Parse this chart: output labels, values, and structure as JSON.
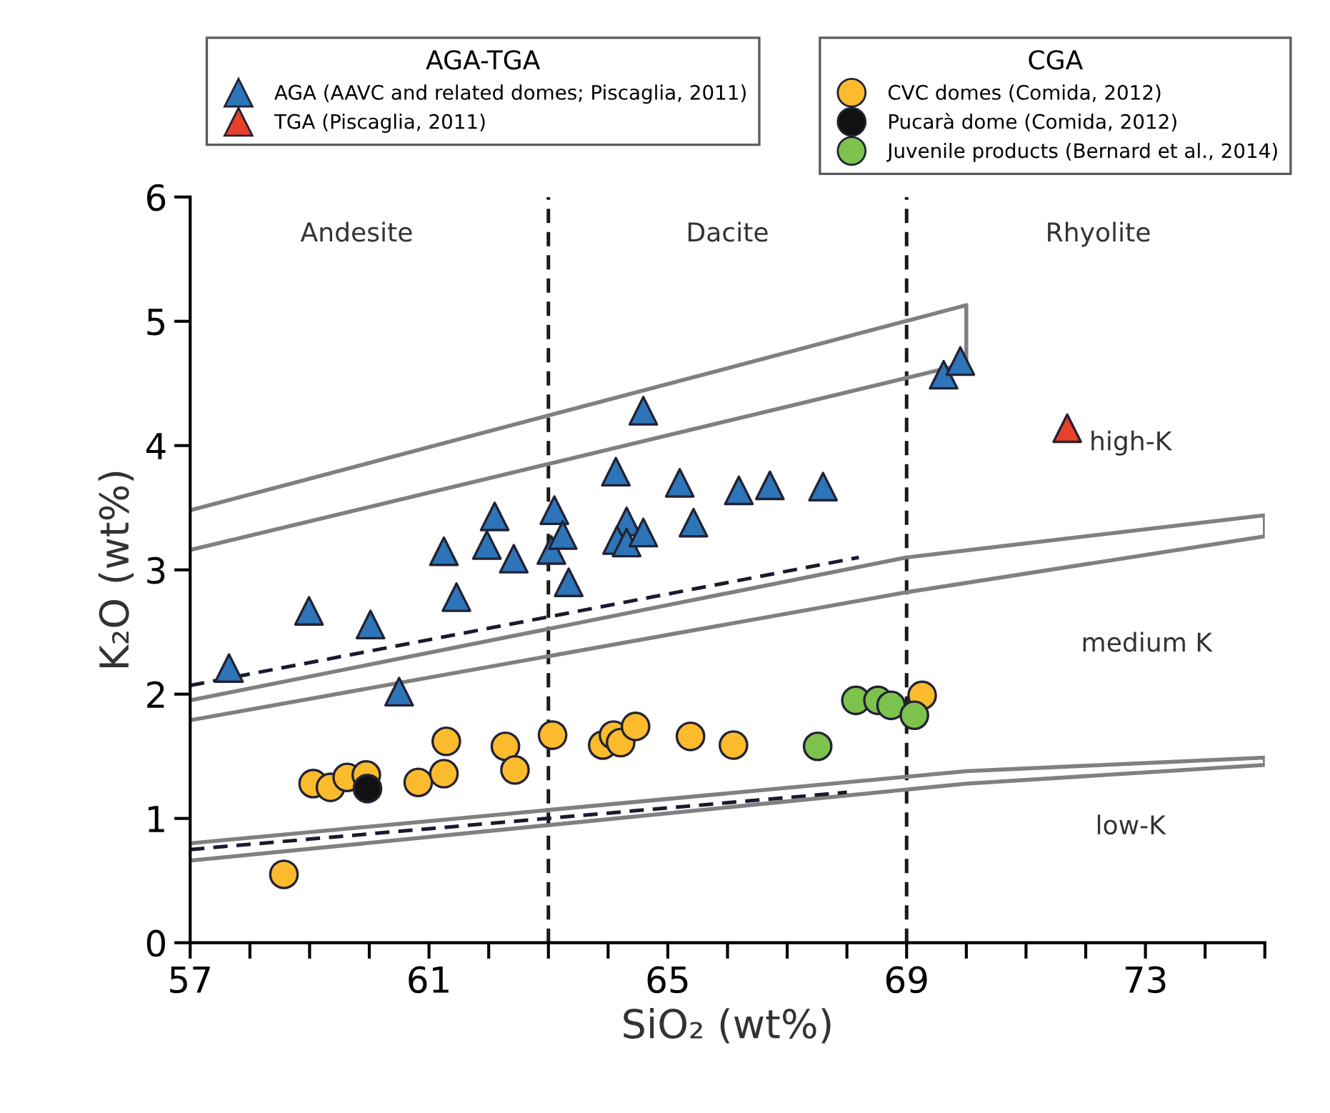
{
  "chart_data": {
    "type": "scatter",
    "xlabel": "SiO₂ (wt%)",
    "ylabel": "K₂O (wt%)",
    "legend_title": [
      "AGA-TGA",
      "CGA"
    ],
    "xlim": [
      57,
      75
    ],
    "ylim": [
      0,
      6
    ],
    "xticks": [
      57,
      {
        "value": 58,
        "label": null
      },
      {
        "value": 59,
        "label": null
      },
      {
        "value": 60,
        "label": null
      },
      61,
      {
        "value": 62,
        "label": null
      },
      {
        "value": 63,
        "label": null
      },
      {
        "value": 64,
        "label": null
      },
      65,
      {
        "value": 66,
        "label": null
      },
      {
        "value": 67,
        "label": null
      },
      {
        "value": 68,
        "label": null
      },
      69,
      {
        "value": 70,
        "label": null
      },
      {
        "value": 71,
        "label": null
      },
      {
        "value": 72,
        "label": null
      },
      73,
      {
        "value": 74,
        "label": null
      },
      {
        "value": 75,
        "label": null
      }
    ],
    "yticks": [
      0,
      1,
      2,
      3,
      4,
      5,
      6
    ],
    "grid": false,
    "legend": "top",
    "ref_lines": [
      {
        "axis": "x",
        "value": 63,
        "color": "#1a1a1a",
        "line_style": "dashed"
      },
      {
        "axis": "x",
        "value": 69,
        "color": "#1a1a1a",
        "line_style": "dashed"
      }
    ],
    "annotations": [
      "Andesite",
      "Dacite",
      "Rhyolite",
      "high-K",
      "medium K",
      "low-K"
    ],
    "series": [
      {
        "type": "line",
        "color": "#808080",
        "line_style": "solid",
        "x": [
          57,
          70,
          70,
          57
        ],
        "values": [
          3.48,
          5.13,
          4.66,
          3.16
        ]
      },
      {
        "type": "line",
        "color": "#808080",
        "line_style": "solid",
        "x": [
          57,
          69,
          75,
          75,
          69,
          57
        ],
        "values": [
          1.95,
          3.1,
          3.44,
          3.27,
          2.82,
          1.79
        ]
      },
      {
        "type": "line",
        "color": "#808080",
        "line_style": "solid",
        "x": [
          57,
          70,
          75,
          75,
          70,
          57
        ],
        "values": [
          0.8,
          1.38,
          1.49,
          1.43,
          1.28,
          0.66
        ]
      },
      {
        "type": "line",
        "color": "#1a1a2e",
        "line_style": "dashed",
        "x": [
          57,
          68.2
        ],
        "values": [
          2.07,
          3.1
        ]
      },
      {
        "type": "line",
        "color": "#1a1a2e",
        "line_style": "dashed",
        "x": [
          57,
          68
        ],
        "values": [
          0.75,
          1.21
        ]
      },
      {
        "name": "AGA (AAVC and related domes; Piscaglia, 2011)",
        "color": "#2e74b8",
        "marker": "triangle",
        "x": [
          57.65,
          58.99,
          60.02,
          60.5,
          61.46,
          61.25,
          62.1,
          61.97,
          62.42,
          63.1,
          63.05,
          63.24,
          63.34,
          64.59,
          64.13,
          64.31,
          64.15,
          64.31,
          64.59,
          65.2,
          65.43,
          66.19,
          66.71,
          67.6,
          69.62,
          69.9
        ],
        "values": [
          2.21,
          2.67,
          2.56,
          2.02,
          2.78,
          3.15,
          3.43,
          3.2,
          3.09,
          3.48,
          3.16,
          3.28,
          2.9,
          4.28,
          3.79,
          3.39,
          3.24,
          3.22,
          3.3,
          3.7,
          3.38,
          3.64,
          3.68,
          3.67,
          4.57,
          4.68
        ]
      },
      {
        "name": "TGA (Piscaglia, 2011)",
        "color": "#e8402a",
        "marker": "triangle",
        "x": [
          71.69
        ],
        "values": [
          4.14
        ]
      },
      {
        "name": "CVC domes (Comida, 2012)",
        "color": "#fbbb2c",
        "marker": "circle",
        "x": [
          58.57,
          59.06,
          59.35,
          59.63,
          59.95,
          60.82,
          61.25,
          61.29,
          62.28,
          62.44,
          63.07,
          63.91,
          64.09,
          64.21,
          64.46,
          65.38,
          66.1,
          69.26
        ],
        "values": [
          0.55,
          1.28,
          1.25,
          1.33,
          1.35,
          1.29,
          1.36,
          1.62,
          1.58,
          1.39,
          1.67,
          1.59,
          1.67,
          1.61,
          1.74,
          1.66,
          1.59,
          1.99
        ]
      },
      {
        "name": "Pucarà dome (Comida, 2012)",
        "color": "#111111",
        "marker": "circle",
        "x": [
          59.97
        ],
        "values": [
          1.24
        ]
      },
      {
        "name": "Juvenile products (Bernard et al., 2014)",
        "color": "#7cc24c",
        "marker": "circle",
        "x": [
          67.51,
          68.15,
          68.52,
          68.74,
          69.13
        ],
        "values": [
          1.58,
          1.95,
          1.95,
          1.91,
          1.83
        ]
      }
    ]
  }
}
